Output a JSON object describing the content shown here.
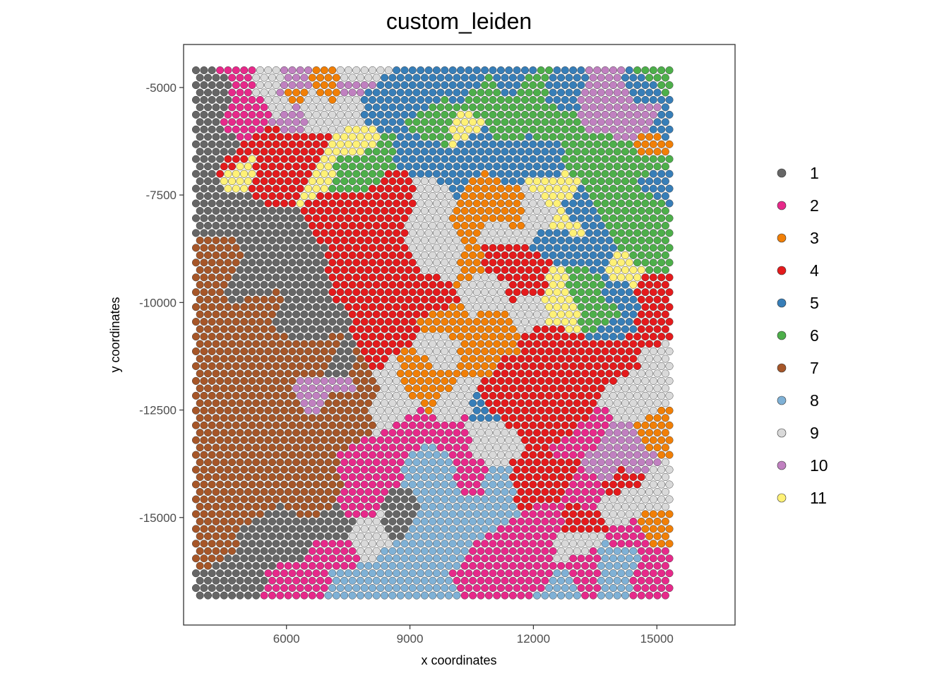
{
  "chart_data": {
    "type": "scatter",
    "title": "custom_leiden",
    "xlabel": "x coordinates",
    "ylabel": "y coordinates",
    "xlim": [
      3500,
      16900
    ],
    "ylim": [
      -17500,
      -4000
    ],
    "x_ticks": [
      6000,
      9000,
      12000,
      15000
    ],
    "y_ticks": [
      -5000,
      -7500,
      -10000,
      -12500,
      -15000
    ],
    "x_tick_labels": [
      "6000",
      "9000",
      "12000",
      "15000"
    ],
    "y_tick_labels": [
      "-5000",
      "-7500",
      "-10000",
      "-12500",
      "-15000"
    ],
    "grid": false,
    "legend_placement": "right",
    "spot_grid": {
      "x_start": 3800,
      "x_end": 15350,
      "x_step": 195,
      "y_start": -4600,
      "y_end": -16900,
      "y_step": 172
    },
    "clusters": [
      {
        "label": "1",
        "color": "#666666"
      },
      {
        "label": "2",
        "color": "#e7298a"
      },
      {
        "label": "3",
        "color": "#f17f06"
      },
      {
        "label": "4",
        "color": "#e41a1c"
      },
      {
        "label": "5",
        "color": "#377eb8"
      },
      {
        "label": "6",
        "color": "#4daf4a"
      },
      {
        "label": "7",
        "color": "#a65628"
      },
      {
        "label": "8",
        "color": "#7fb1d6"
      },
      {
        "label": "9",
        "color": "#d9d9d9"
      },
      {
        "label": "10",
        "color": "#c080c0"
      },
      {
        "label": "11",
        "color": "#fff176"
      }
    ],
    "regions": [
      {
        "cluster": "1",
        "points": [
          [
            4300,
            -5200
          ],
          [
            4500,
            -6600
          ],
          [
            4800,
            -7800
          ],
          [
            5600,
            -8400
          ],
          [
            6200,
            -9300
          ],
          [
            3900,
            -5500
          ],
          [
            3900,
            -6800
          ],
          [
            4200,
            -7900
          ],
          [
            5200,
            -9700
          ],
          [
            6400,
            -10500
          ],
          [
            5300,
            -15300
          ],
          [
            4600,
            -16200
          ],
          [
            4000,
            -16700
          ],
          [
            6000,
            -15400
          ],
          [
            7200,
            -15200
          ],
          [
            8800,
            -15000
          ],
          [
            7300,
            -11600
          ]
        ]
      },
      {
        "cluster": "2",
        "points": [
          [
            5000,
            -4800
          ],
          [
            4900,
            -5400
          ],
          [
            5200,
            -5700
          ],
          [
            9000,
            -12900
          ],
          [
            10200,
            -13000
          ],
          [
            8200,
            -13800
          ],
          [
            7800,
            -14700
          ],
          [
            7200,
            -15700
          ],
          [
            10500,
            -14200
          ],
          [
            11000,
            -15700
          ],
          [
            10500,
            -16300
          ],
          [
            11700,
            -15900
          ],
          [
            12000,
            -16400
          ],
          [
            13200,
            -14300
          ],
          [
            14400,
            -15600
          ],
          [
            14900,
            -16100
          ],
          [
            13400,
            -16300
          ],
          [
            12400,
            -15200
          ],
          [
            12900,
            -13200
          ],
          [
            6400,
            -16600
          ]
        ]
      },
      {
        "cluster": "3",
        "points": [
          [
            6300,
            -5200
          ],
          [
            7000,
            -5000
          ],
          [
            10800,
            -7600
          ],
          [
            11400,
            -7900
          ],
          [
            10400,
            -8200
          ],
          [
            10400,
            -9100
          ],
          [
            9000,
            -11500
          ],
          [
            9500,
            -12000
          ],
          [
            10600,
            -11000
          ],
          [
            11100,
            -10700
          ],
          [
            9800,
            -10500
          ],
          [
            15200,
            -13000
          ],
          [
            15100,
            -15300
          ],
          [
            14800,
            -6300
          ]
        ]
      },
      {
        "cluster": "4",
        "points": [
          [
            4600,
            -6700
          ],
          [
            5700,
            -6300
          ],
          [
            6500,
            -6700
          ],
          [
            5500,
            -7100
          ],
          [
            7400,
            -7800
          ],
          [
            8200,
            -8200
          ],
          [
            7800,
            -9200
          ],
          [
            8600,
            -9600
          ],
          [
            8700,
            -10700
          ],
          [
            9500,
            -9900
          ],
          [
            8300,
            -11300
          ],
          [
            8800,
            -7500
          ],
          [
            11200,
            -9000
          ],
          [
            11900,
            -9500
          ],
          [
            12300,
            -10800
          ],
          [
            11700,
            -11800
          ],
          [
            12200,
            -12800
          ],
          [
            13200,
            -11300
          ],
          [
            14000,
            -11100
          ],
          [
            15000,
            -10500
          ],
          [
            11200,
            -12400
          ],
          [
            11900,
            -14200
          ],
          [
            13000,
            -15200
          ],
          [
            12700,
            -14000
          ],
          [
            14100,
            -14200
          ],
          [
            14800,
            -9600
          ],
          [
            12700,
            -13000
          ]
        ]
      },
      {
        "cluster": "5",
        "points": [
          [
            8200,
            -5400
          ],
          [
            9200,
            -5100
          ],
          [
            10300,
            -4800
          ],
          [
            10600,
            -6200
          ],
          [
            11500,
            -6600
          ],
          [
            12300,
            -6700
          ],
          [
            13100,
            -7900
          ],
          [
            12700,
            -8500
          ],
          [
            13400,
            -8900
          ],
          [
            14100,
            -9800
          ],
          [
            13900,
            -10600
          ],
          [
            14700,
            -5100
          ],
          [
            15100,
            -5900
          ],
          [
            15100,
            -7100
          ],
          [
            11600,
            -4700
          ],
          [
            12600,
            -5200
          ],
          [
            9200,
            -6600
          ],
          [
            10000,
            -7000
          ],
          [
            10800,
            -12600
          ]
        ]
      },
      {
        "cluster": "6",
        "points": [
          [
            9700,
            -5800
          ],
          [
            10800,
            -5300
          ],
          [
            11300,
            -5900
          ],
          [
            12500,
            -5700
          ],
          [
            13100,
            -6600
          ],
          [
            13800,
            -7600
          ],
          [
            14500,
            -7900
          ],
          [
            14800,
            -8900
          ],
          [
            14500,
            -8400
          ],
          [
            13200,
            -9600
          ],
          [
            13700,
            -10300
          ],
          [
            14900,
            -6800
          ],
          [
            14200,
            -6400
          ],
          [
            8000,
            -6600
          ],
          [
            7400,
            -7000
          ],
          [
            12000,
            -5000
          ],
          [
            15000,
            -4700
          ]
        ]
      },
      {
        "cluster": "7",
        "points": [
          [
            3900,
            -9800
          ],
          [
            4400,
            -10400
          ],
          [
            5200,
            -10900
          ],
          [
            6100,
            -11200
          ],
          [
            6800,
            -11400
          ],
          [
            4600,
            -12500
          ],
          [
            5700,
            -12600
          ],
          [
            7300,
            -12200
          ],
          [
            4000,
            -13400
          ],
          [
            5100,
            -13700
          ],
          [
            6300,
            -13900
          ],
          [
            7400,
            -12700
          ],
          [
            3900,
            -14700
          ],
          [
            5000,
            -14900
          ],
          [
            6700,
            -14500
          ],
          [
            4300,
            -15800
          ],
          [
            4200,
            -9100
          ],
          [
            5300,
            -10000
          ],
          [
            7700,
            -11700
          ]
        ]
      },
      {
        "cluster": "8",
        "points": [
          [
            8500,
            -16500
          ],
          [
            9500,
            -16700
          ],
          [
            10000,
            -15800
          ],
          [
            9300,
            -15300
          ],
          [
            10600,
            -15100
          ],
          [
            9800,
            -14500
          ],
          [
            10600,
            -14700
          ],
          [
            11100,
            -14300
          ],
          [
            9500,
            -13900
          ],
          [
            8800,
            -16200
          ],
          [
            7600,
            -16700
          ],
          [
            12500,
            -16800
          ],
          [
            13700,
            -16300
          ],
          [
            14300,
            -15900
          ],
          [
            7300,
            -11600
          ]
        ]
      },
      {
        "cluster": "9",
        "points": [
          [
            5500,
            -4800
          ],
          [
            5900,
            -5500
          ],
          [
            6700,
            -5400
          ],
          [
            7600,
            -4800
          ],
          [
            7500,
            -5400
          ],
          [
            9500,
            -7900
          ],
          [
            9800,
            -8400
          ],
          [
            10000,
            -9000
          ],
          [
            10800,
            -9700
          ],
          [
            11200,
            -8400
          ],
          [
            12100,
            -7900
          ],
          [
            8500,
            -11500
          ],
          [
            9700,
            -11000
          ],
          [
            10100,
            -12400
          ],
          [
            11000,
            -13200
          ],
          [
            8700,
            -12500
          ],
          [
            12000,
            -10300
          ],
          [
            15200,
            -11400
          ],
          [
            14800,
            -12100
          ],
          [
            15200,
            -14400
          ],
          [
            14200,
            -14600
          ],
          [
            9500,
            -7500
          ],
          [
            8000,
            -15300
          ],
          [
            13000,
            -15400
          ],
          [
            10700,
            -12900
          ]
        ]
      },
      {
        "cluster": "10",
        "points": [
          [
            14100,
            -5300
          ],
          [
            14700,
            -5700
          ],
          [
            14300,
            -6000
          ],
          [
            13700,
            -5400
          ],
          [
            6200,
            -4900
          ],
          [
            6000,
            -5600
          ],
          [
            7600,
            -5000
          ],
          [
            13800,
            -13800
          ],
          [
            14300,
            -13600
          ],
          [
            7300,
            -11900
          ],
          [
            6900,
            -12000
          ]
        ]
      },
      {
        "cluster": "11",
        "points": [
          [
            6900,
            -6900
          ],
          [
            7800,
            -6400
          ],
          [
            4900,
            -7000
          ],
          [
            10400,
            -6000
          ],
          [
            12500,
            -7400
          ],
          [
            12600,
            -9800
          ],
          [
            12600,
            -10200
          ],
          [
            12800,
            -8200
          ],
          [
            14300,
            -9300
          ]
        ]
      }
    ]
  }
}
